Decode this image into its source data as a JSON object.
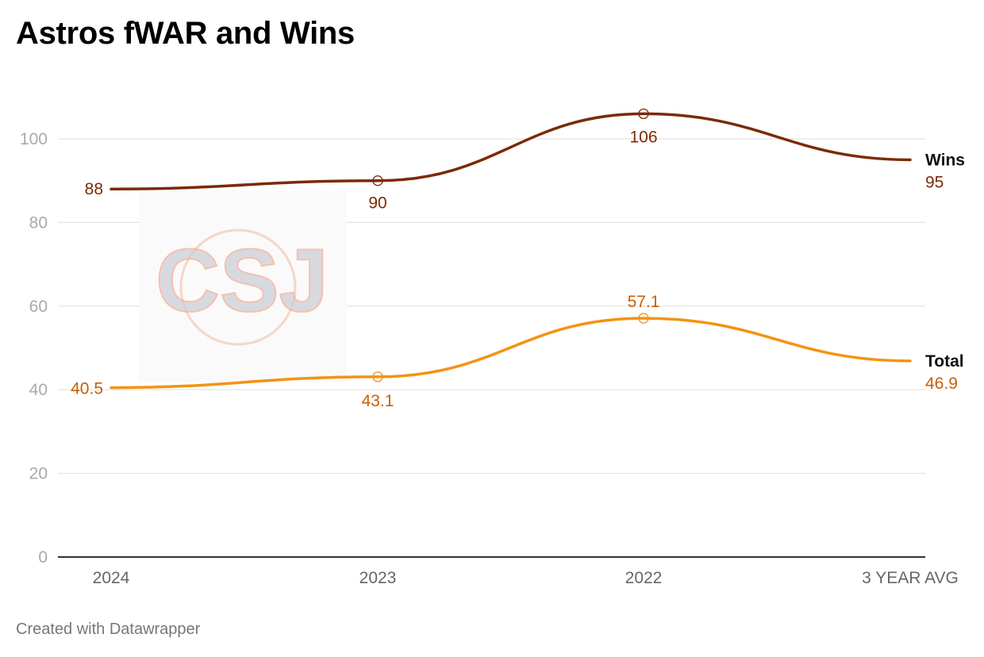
{
  "title": "Astros fWAR and Wins",
  "footer": "Created with Datawrapper",
  "watermark": "CSJ",
  "colors": {
    "wins": "#7b2a07",
    "total": "#f39312",
    "total_label": "#c85f00",
    "grid": "#e3e3e3",
    "axis": "#333333",
    "tick_text": "#aaaaaa",
    "x_text": "#666666",
    "watermark_fill": "#c9ccd6",
    "watermark_stroke": "#f4a98a"
  },
  "chart_data": {
    "type": "line",
    "title": "Astros fWAR and Wins",
    "categories": [
      "2024",
      "2023",
      "2022",
      "3 YEAR AVG"
    ],
    "series": [
      {
        "name": "Wins",
        "values": [
          88,
          90,
          106,
          95
        ],
        "labels": [
          "88",
          "90",
          "106",
          "95"
        ]
      },
      {
        "name": "Total",
        "values": [
          40.5,
          43.1,
          57.1,
          46.9
        ],
        "labels": [
          "40.5",
          "43.1",
          "57.1",
          "46.9"
        ]
      }
    ],
    "y_ticks": [
      "0",
      "20",
      "40",
      "60",
      "80",
      "100"
    ],
    "ylim": [
      0,
      110
    ],
    "grid": true,
    "legend": "direct labels at right end of lines",
    "markers": "open circles at 2023 and 2022"
  }
}
